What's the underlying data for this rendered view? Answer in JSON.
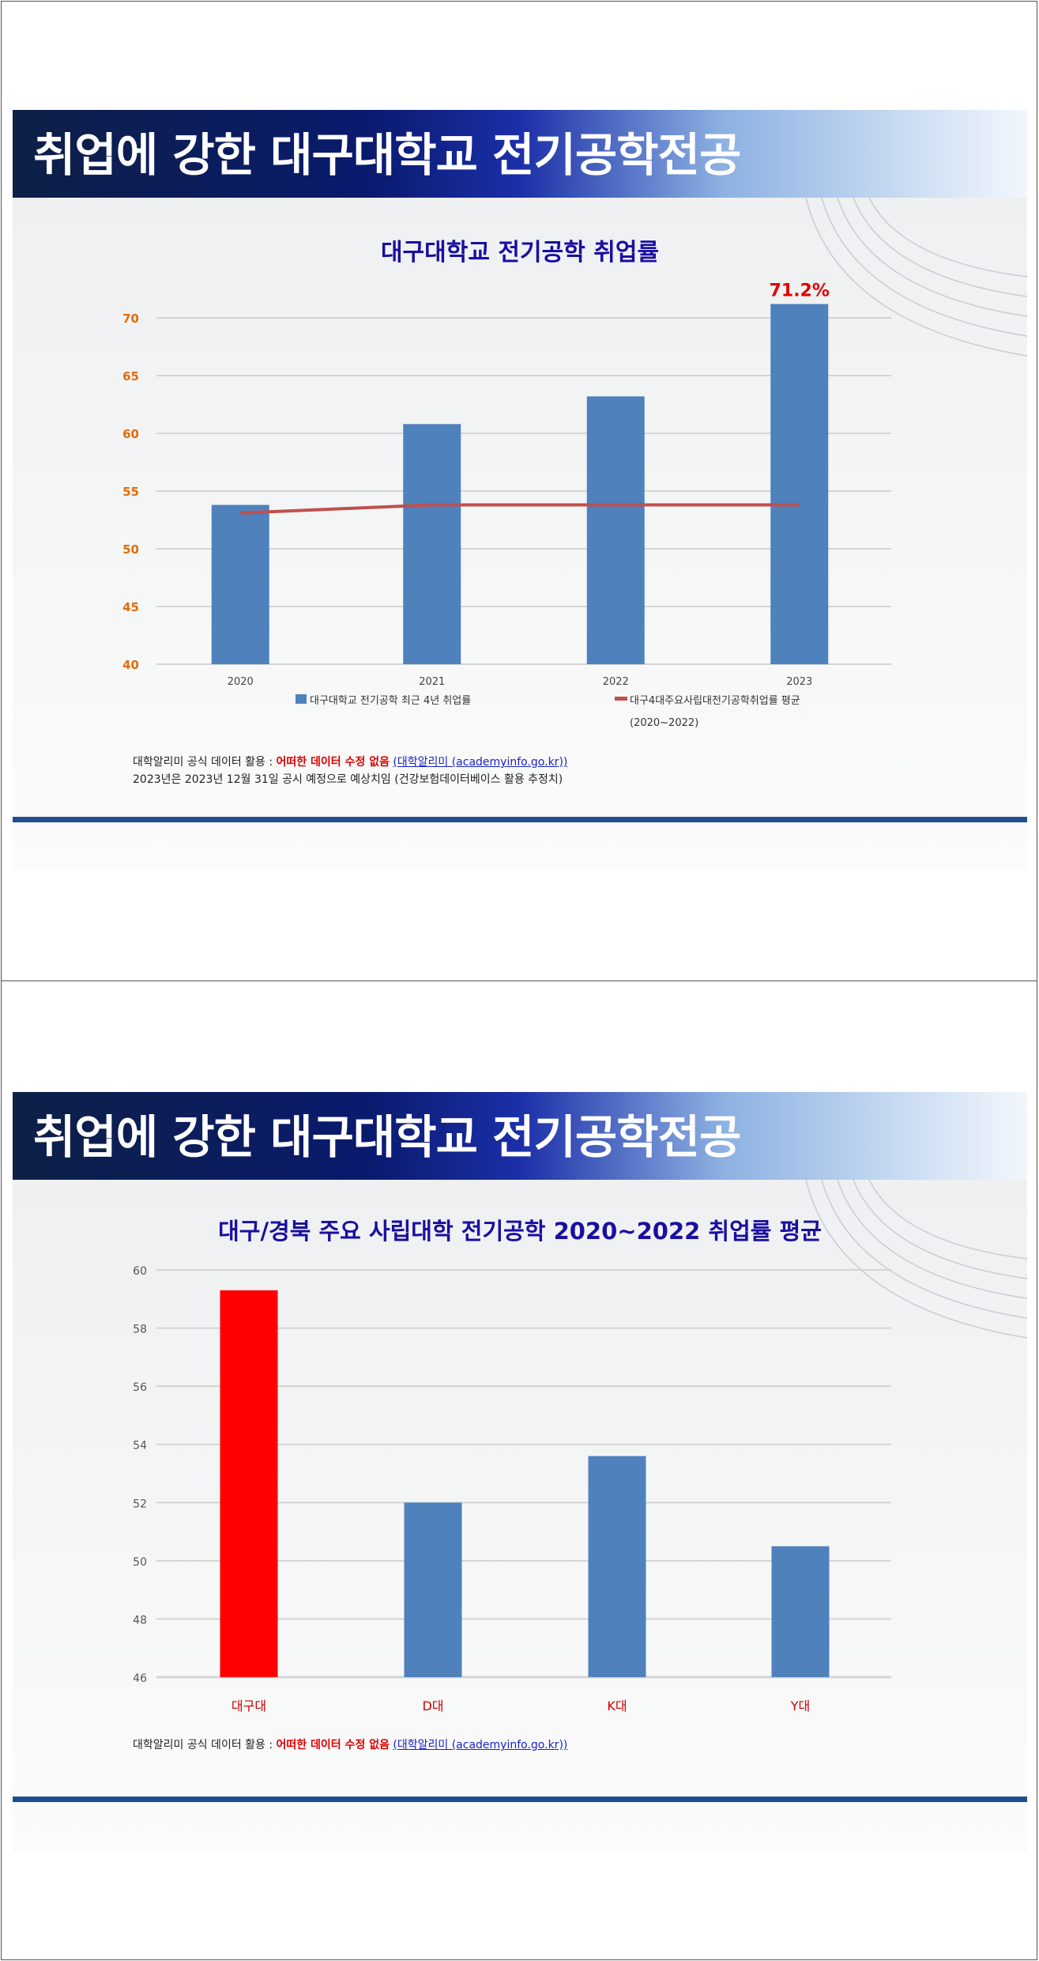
{
  "slides": [
    {
      "header": "취업에 강한 대구대학교 전기공학전공",
      "note_lines": [
        {
          "prefix": "대학알리미 공식 데이터 활용 : ",
          "highlight": "어떠한 데이터 수정 없음",
          "link": "(대학알리미 (academyinfo.go.kr))"
        },
        {
          "prefix": "2023년은 2023년 12월 31일 공시 예정으로 예상치임 (건강보험데이터베이스 활용 추정치)"
        }
      ]
    },
    {
      "header": "취업에 강한 대구대학교 전기공학전공",
      "note_lines": [
        {
          "prefix": "대학알리미 공식 데이터 활용 : ",
          "highlight": "어떠한 데이터 수정 없음",
          "link": "(대학알리미 (academyinfo.go.kr))"
        }
      ]
    }
  ],
  "colors": {
    "bar_blue": "#4f81bd",
    "line_red": "#c0504d",
    "highlight_bar": "#ff0000",
    "title_blue": "#1a0fa0",
    "axis_orange": "#e36c09"
  },
  "chart_data": [
    {
      "type": "bar",
      "title": "대구대학교 전기공학 취업률",
      "categories": [
        "2020",
        "2021",
        "2022",
        "2023"
      ],
      "series": [
        {
          "name": "대구대학교 전기공학 최근 4년 취업률",
          "type": "bar",
          "values": [
            53.8,
            60.8,
            63.2,
            71.2
          ]
        },
        {
          "name": "대구4대주요사립대전기공학취업률 평균 (2020~2022)",
          "type": "line",
          "values": [
            53.1,
            53.8,
            53.8,
            53.8
          ]
        }
      ],
      "annotation": "71.2%",
      "ylim": [
        40,
        70
      ],
      "yticks": [
        40,
        45,
        50,
        55,
        60,
        65,
        70
      ],
      "grid": true,
      "legend": "bottom"
    },
    {
      "type": "bar",
      "title": "대구/경북 주요 사립대학  전기공학 2020~2022 취업률 평균",
      "categories": [
        "대구대",
        "D대",
        "K대",
        "Y대"
      ],
      "values": [
        59.3,
        52.0,
        53.6,
        50.5
      ],
      "ylim": [
        46,
        60
      ],
      "yticks": [
        46,
        48,
        50,
        52,
        54,
        56,
        58,
        60
      ],
      "grid": true
    }
  ]
}
